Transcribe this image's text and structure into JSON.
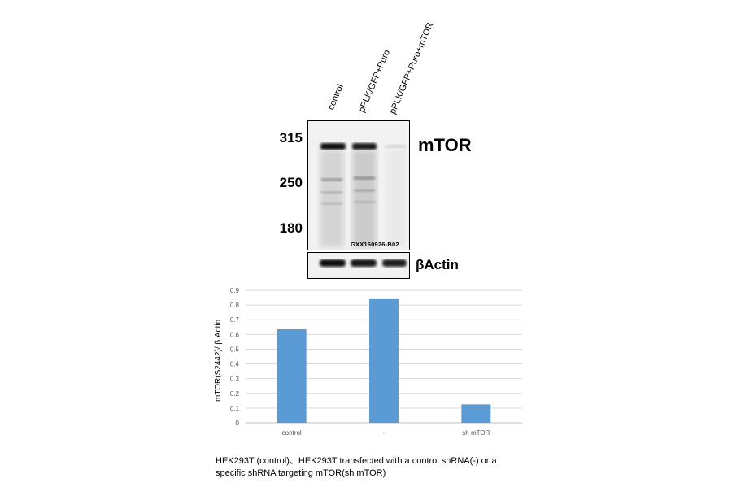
{
  "blot": {
    "lanes": [
      "control",
      "pPLK/GFP+Puro",
      "pPLK/GFP+Puro+mTOR"
    ],
    "mw_markers": [
      "315",
      "250",
      "180"
    ],
    "target_label": "mTOR",
    "loading_label": "βActin",
    "catalog_mark": "GXX160926-B02"
  },
  "chart_data": {
    "type": "bar",
    "categories": [
      "control",
      "-",
      "sh mTOR"
    ],
    "values": [
      0.635,
      0.84,
      0.125
    ],
    "ylabel": "mTOR(S2442)/ β Actin",
    "ylim": [
      0,
      0.9
    ],
    "yticks": [
      "0",
      "0.1",
      "0.2",
      "0.3",
      "0.4",
      "0.5",
      "0.6",
      "0.7",
      "0.8",
      "0.9"
    ],
    "grid": true,
    "bar_color": "#5b9bd5"
  },
  "caption": {
    "line1": "HEK293T (control)、HEK293T transfected with a control shRNA(-) or a",
    "line2": "specific  shRNA targeting mTOR(sh mTOR)"
  }
}
